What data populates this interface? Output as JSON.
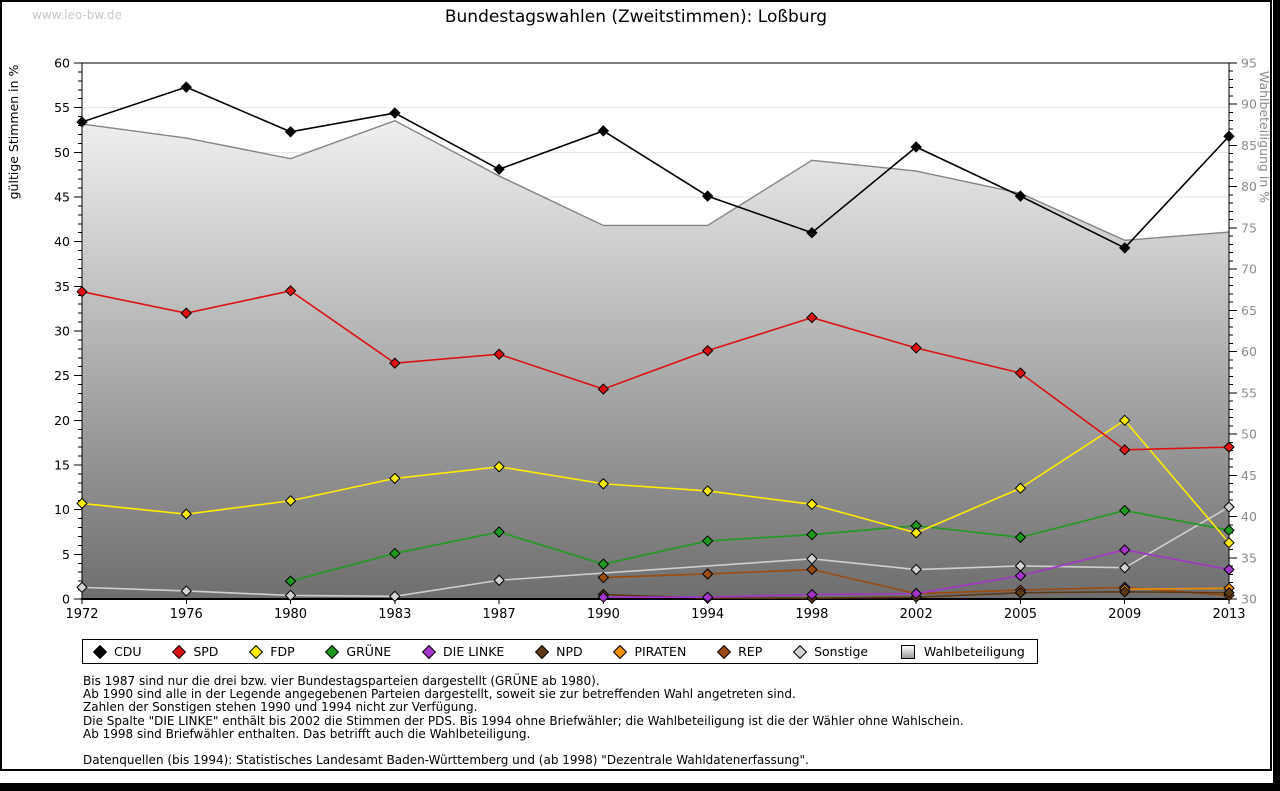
{
  "window": {
    "watermark": "www.leo-bw.de",
    "title": "Bundestagswahlen (Zweitstimmen): Loßburg"
  },
  "chart_data": {
    "type": "line",
    "title": "Bundestagswahlen (Zweitstimmen): Loßburg",
    "categories": [
      "1972",
      "1976",
      "1980",
      "1983",
      "1987",
      "1990",
      "1994",
      "1998",
      "2002",
      "2005",
      "2009",
      "2013"
    ],
    "left_axis": {
      "label": "gültige Stimmen in %",
      "min": 0,
      "max": 60,
      "step": 5
    },
    "right_axis": {
      "label": "Wahlbeteiligung in %",
      "min": 30,
      "max": 95,
      "step": 5
    },
    "grid": "horizontal-every-5",
    "legend_position": "bottom",
    "colors": {
      "gridline": "#dcdcdc",
      "area_top": "#ffffff",
      "area_bottom": "#6e6e6e",
      "area_line": "#848484",
      "right_axis_text": "#8c8c8c"
    },
    "series": [
      {
        "name": "CDU",
        "color": "#000000",
        "marker": "diamond",
        "axis": "left",
        "values": [
          53.4,
          57.3,
          52.3,
          54.4,
          48.1,
          52.4,
          45.1,
          41.0,
          50.6,
          45.1,
          39.3,
          51.8
        ]
      },
      {
        "name": "SPD",
        "color": "#dd1111",
        "marker": "diamond",
        "axis": "left",
        "values": [
          34.4,
          32.0,
          34.5,
          26.4,
          27.4,
          23.5,
          27.8,
          31.5,
          28.1,
          25.3,
          16.7,
          17.0
        ]
      },
      {
        "name": "FDP",
        "color": "#ffeb00",
        "marker": "diamond",
        "axis": "left",
        "values": [
          10.7,
          9.5,
          11.0,
          13.5,
          14.8,
          12.9,
          12.1,
          10.6,
          7.4,
          12.4,
          20.0,
          6.3
        ]
      },
      {
        "name": "GRÜNE",
        "color": "#1f9a1f",
        "marker": "diamond",
        "axis": "left",
        "values": [
          null,
          null,
          2.0,
          5.1,
          7.5,
          3.9,
          6.5,
          7.2,
          8.2,
          6.9,
          9.9,
          7.7
        ]
      },
      {
        "name": "DIE LINKE",
        "color": "#a435c8",
        "marker": "diamond",
        "axis": "left",
        "values": [
          null,
          null,
          null,
          null,
          null,
          0.2,
          0.2,
          0.5,
          0.6,
          2.6,
          5.5,
          3.3
        ]
      },
      {
        "name": "NPD",
        "color": "#5f3a16",
        "marker": "diamond",
        "axis": "left",
        "values": [
          null,
          null,
          null,
          null,
          null,
          0.5,
          0.1,
          0.1,
          0.2,
          0.7,
          0.8,
          0.7
        ]
      },
      {
        "name": "PIRATEN",
        "color": "#ef8f00",
        "marker": "diamond",
        "axis": "left",
        "values": [
          null,
          null,
          null,
          null,
          null,
          null,
          null,
          null,
          null,
          null,
          1.1,
          1.2
        ]
      },
      {
        "name": "REP",
        "color": "#9c4a0e",
        "marker": "diamond",
        "axis": "left",
        "values": [
          null,
          null,
          null,
          null,
          null,
          2.4,
          2.8,
          3.3,
          0.6,
          1.0,
          1.3,
          0.4
        ]
      },
      {
        "name": "Sonstige",
        "color": "#d3d3d3",
        "marker": "diamond",
        "axis": "left",
        "line_color": "#cfcfcf",
        "values": [
          1.3,
          0.9,
          0.4,
          0.3,
          2.1,
          null,
          null,
          4.5,
          3.3,
          3.7,
          3.5,
          10.3
        ]
      },
      {
        "name": "Wahlbeteiligung",
        "color": "#bdbdbd",
        "marker": "square",
        "axis": "right",
        "area": true,
        "values": [
          87.6,
          85.9,
          83.4,
          88.0,
          81.3,
          75.3,
          75.3,
          83.2,
          81.9,
          79.2,
          73.5,
          74.5
        ]
      }
    ]
  },
  "footnotes": {
    "lines": [
      "Bis 1987 sind nur die drei bzw. vier Bundestagsparteien dargestellt (GRÜNE ab 1980).",
      "Ab 1990 sind alle in der Legende angegebenen Parteien dargestellt, soweit sie zur betreffenden Wahl angetreten sind.",
      "Zahlen der Sonstigen stehen 1990 und 1994 nicht zur Verfügung.",
      "Die Spalte \"DIE LINKE\" enthält bis 2002 die Stimmen der PDS. Bis 1994 ohne Briefwähler; die Wahlbeteiligung ist die der Wähler ohne Wahlschein.",
      "Ab 1998 sind Briefwähler enthalten. Das betrifft auch die Wahlbeteiligung."
    ],
    "source": "Datenquellen (bis 1994): Statistisches Landesamt Baden-Württemberg und (ab 1998) \"Dezentrale Wahldatenerfassung\"."
  }
}
